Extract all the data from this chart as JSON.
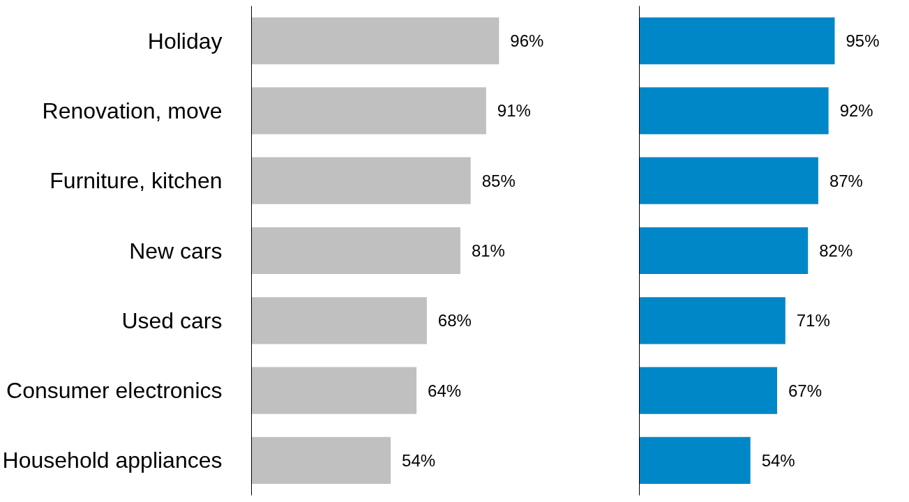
{
  "chart_data": [
    {
      "type": "bar",
      "orientation": "horizontal",
      "categories": [
        "Holiday",
        "Renovation, move",
        "Furniture, kitchen",
        "New cars",
        "Used cars",
        "Consumer electronics",
        "Household appliances"
      ],
      "values": [
        96,
        91,
        85,
        81,
        68,
        64,
        54
      ],
      "color": "#c0c0c0",
      "value_labels": [
        "96%",
        "91%",
        "85%",
        "81%",
        "68%",
        "64%",
        "54%"
      ],
      "tick_labels": "y",
      "grid": false
    },
    {
      "type": "bar",
      "orientation": "horizontal",
      "categories": [
        null,
        null,
        null,
        null,
        null,
        null,
        null
      ],
      "values": [
        95,
        92,
        87,
        82,
        71,
        67,
        54
      ],
      "color": "#0087c8",
      "value_labels": [
        "95%",
        "92%",
        "87%",
        "82%",
        "71%",
        "67%",
        "54%"
      ],
      "tick_labels": false,
      "grid": false
    }
  ]
}
